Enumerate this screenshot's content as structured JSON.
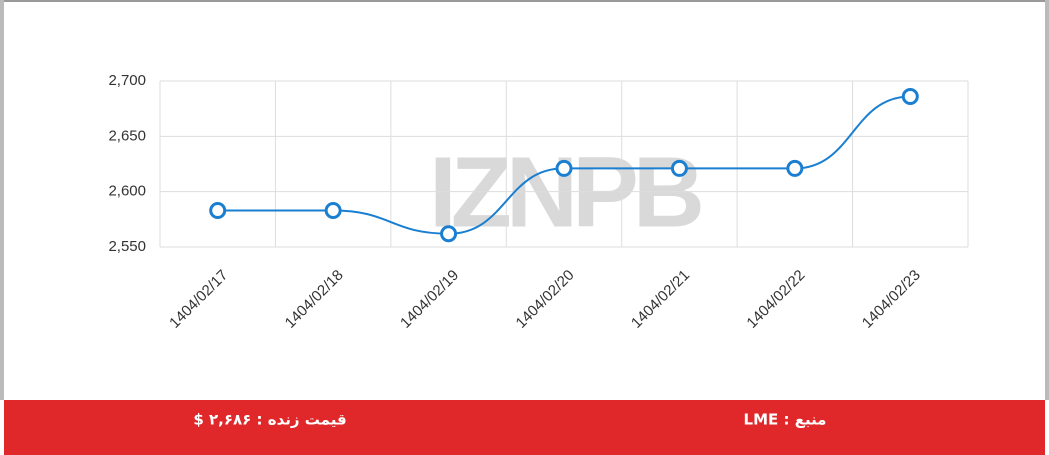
{
  "chart_data": {
    "type": "line",
    "watermark": "IZNPB",
    "categories": [
      "1404/02/17",
      "1404/02/18",
      "1404/02/19",
      "1404/02/20",
      "1404/02/21",
      "1404/02/22",
      "1404/02/23"
    ],
    "series": [
      {
        "name": null,
        "color": "#1a7fd0",
        "values": [
          2583,
          2583,
          2562,
          2621,
          2621,
          2621,
          2686
        ]
      }
    ],
    "ylim": [
      2550,
      2700
    ],
    "yticks": [
      {
        "value": 2550,
        "label": "2,550"
      },
      {
        "value": 2600,
        "label": "2,600"
      },
      {
        "value": 2650,
        "label": "2,650"
      },
      {
        "value": 2700,
        "label": "2,700"
      }
    ],
    "grid": true
  },
  "footer": {
    "live_price": "قیمت زنده : ۲,۶۸۶ $",
    "source": "منبع : LME"
  }
}
